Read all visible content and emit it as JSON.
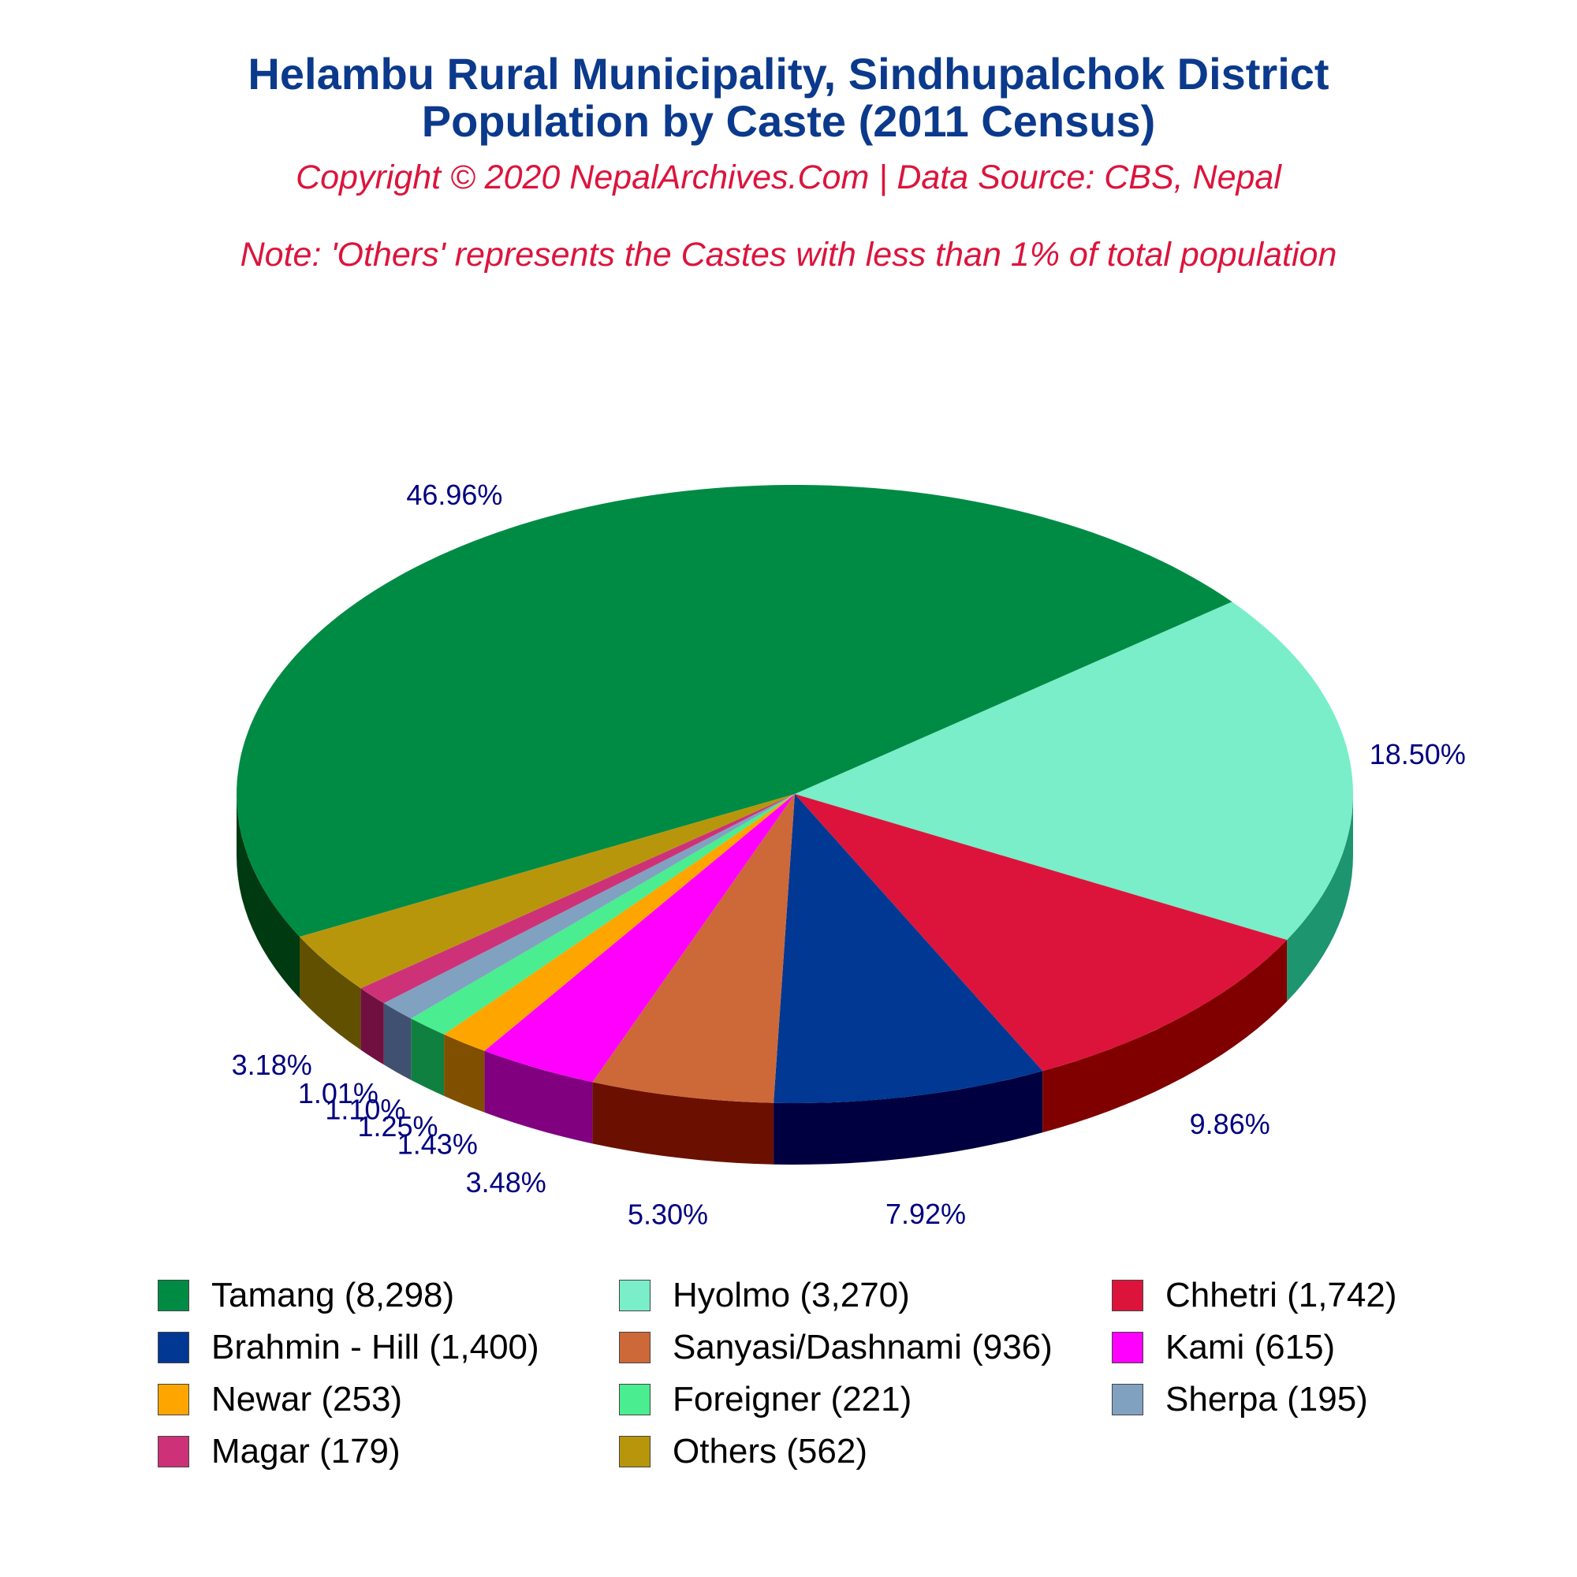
{
  "title_line1": "Helambu Rural Municipality, Sindhupalchok District",
  "title_line2": "Population by Caste (2011 Census)",
  "subtitle": "Copyright © 2020 NepalArchives.Com | Data Source: CBS, Nepal",
  "note": "Note: 'Others' represents the Castes with less than 1% of total population",
  "chart_data": {
    "type": "pie",
    "style": "3d",
    "categories": [
      "Tamang",
      "Hyolmo",
      "Chhetri",
      "Brahmin - Hill",
      "Sanyasi/Dashnami",
      "Kami",
      "Newar",
      "Foreigner",
      "Sherpa",
      "Magar",
      "Others"
    ],
    "values": [
      8298,
      3270,
      1742,
      1400,
      936,
      615,
      253,
      221,
      195,
      179,
      562
    ],
    "percent_labels": [
      "46.96%",
      "18.50%",
      "9.86%",
      "7.92%",
      "5.30%",
      "3.48%",
      "1.43%",
      "1.25%",
      "1.10%",
      "1.01%",
      "3.18%"
    ],
    "legend_labels": [
      "Tamang (8,298)",
      "Hyolmo (3,270)",
      "Chhetri (1,742)",
      "Brahmin - Hill (1,400)",
      "Sanyasi/Dashnami (936)",
      "Kami (615)",
      "Newar (253)",
      "Foreigner (221)",
      "Sherpa (195)",
      "Magar (179)",
      "Others (562)"
    ],
    "colors": [
      "#008b45",
      "#79eec8",
      "#dc143c",
      "#003893",
      "#cd6839",
      "#ff00ff",
      "#ffa500",
      "#4aed8f",
      "#81a1c1",
      "#cd3278",
      "#b8960c"
    ],
    "side_colors": [
      "#003a10",
      "#1d956f",
      "#800000",
      "#000040",
      "#6b1000",
      "#800080",
      "#805000",
      "#108040",
      "#405070",
      "#701040",
      "#605000"
    ],
    "label_color": "#000080",
    "legend_columns": 3,
    "legend_position": "bottom"
  }
}
